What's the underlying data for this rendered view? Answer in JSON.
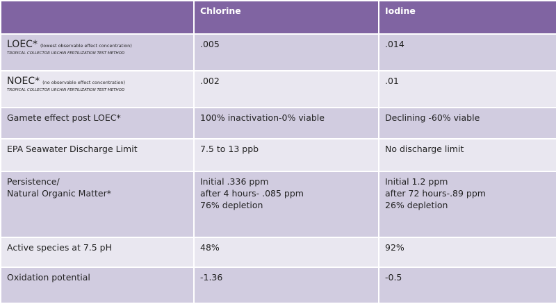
{
  "header": {
    "col0": "",
    "col1": "Chlorine",
    "col2": "Iodine"
  },
  "rows": [
    {
      "label": "LOEC*",
      "sub": "(lowest observable effect concentration)",
      "method": "TROPICAL COLLECTOR URCHIN FERTILIZATION TEST METHOD",
      "chlorine": ".005",
      "iodine": ".014"
    },
    {
      "label": "NOEC*",
      "sub": "(no observable effect concentration)",
      "method": "TROPICAL COLLECTOR URCHIN FERTILIZATION TEST METHOD",
      "chlorine": ".002",
      "iodine": ".01"
    },
    {
      "label": "Gamete effect post LOEC*",
      "chlorine": "100% inactivation-0% viable",
      "iodine": "Declining -60% viable"
    },
    {
      "label": "EPA Seawater Discharge Limit",
      "chlorine": "7.5 to 13 ppb",
      "iodine": "No discharge limit"
    },
    {
      "label": "Persistence/\nNatural Organic Matter*",
      "chlorine": "Initial .336 ppm\nafter 4 hours- .085 ppm\n76% depletion",
      "iodine": "Initial 1.2 ppm\nafter 72 hours-.89 ppm\n26% depletion"
    },
    {
      "label": "Active species at 7.5 pH",
      "chlorine": "48%",
      "iodine": "92%"
    },
    {
      "label": "Oxidation potential",
      "chlorine": "-1.36",
      "iodine": "-0.5"
    }
  ],
  "colors": {
    "header": "#8064a2",
    "row_dark": "#d1cce0",
    "row_light": "#e9e7f0"
  }
}
